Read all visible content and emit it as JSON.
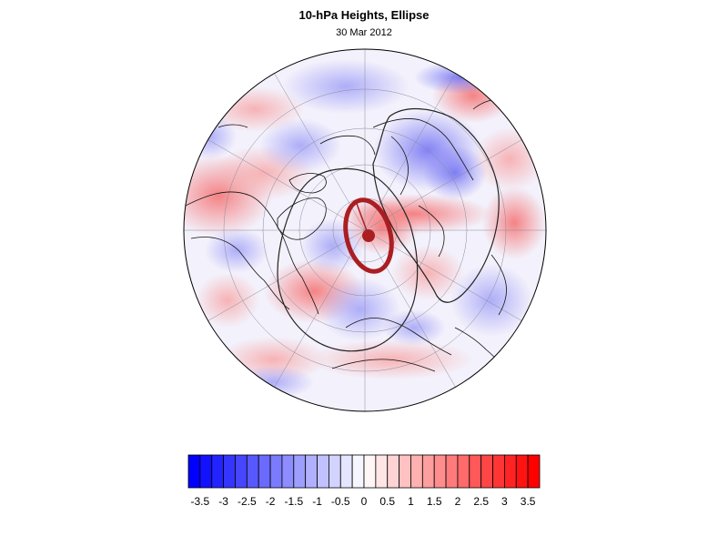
{
  "title": "10-hPa Heights, Ellipse",
  "subtitle": "30 Mar 2012",
  "colorbar": {
    "min": -3.75,
    "max": 3.75,
    "step": 0.25,
    "low_color": "#0000ff",
    "mid_color": "#ffffff",
    "high_color": "#ff0000",
    "tick_labels": [
      "-3.5",
      "-3",
      "-2.5",
      "-2",
      "-1.5",
      "-1",
      "-0.5",
      "0",
      "0.5",
      "1",
      "1.5",
      "2",
      "2.5",
      "3",
      "3.5"
    ]
  },
  "map": {
    "projection": "north polar stereographic",
    "ellipse_color": "#aa1e22",
    "contour_color": "#222222"
  }
}
